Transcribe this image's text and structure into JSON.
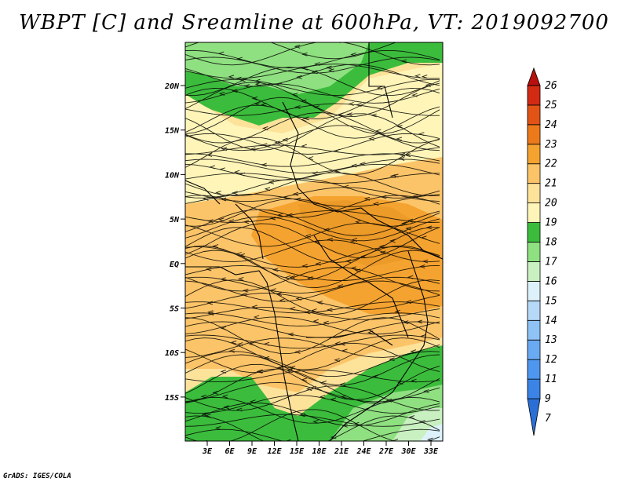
{
  "title": "WBPT [C] and Sreamline at 600hPa, VT: 2019092700",
  "credit": "GrADS: IGES/COLA",
  "map": {
    "lat_labels": [
      "20N",
      "15N",
      "10N",
      "5N",
      "EQ",
      "5S",
      "10S",
      "15S"
    ],
    "lon_labels": [
      "3E",
      "6E",
      "9E",
      "12E",
      "15E",
      "18E",
      "21E",
      "24E",
      "27E",
      "30E",
      "33E"
    ]
  },
  "colorbar": {
    "labels": [
      "7",
      "9",
      "11",
      "12",
      "13",
      "14",
      "15",
      "16",
      "17",
      "18",
      "19",
      "20",
      "21",
      "22",
      "23",
      "24",
      "25",
      "26"
    ],
    "colors": [
      "#2a6fd6",
      "#3b84e6",
      "#4f97ee",
      "#6aaaf2",
      "#8fc2f5",
      "#b6d9f8",
      "#ddf1fb",
      "#c9f0c0",
      "#8fe080",
      "#3cbc3c",
      "#fff5b8",
      "#fde29a",
      "#fcc468",
      "#f5a330",
      "#ec7a1a",
      "#e25416",
      "#d32a14",
      "#b80f0f"
    ]
  }
}
